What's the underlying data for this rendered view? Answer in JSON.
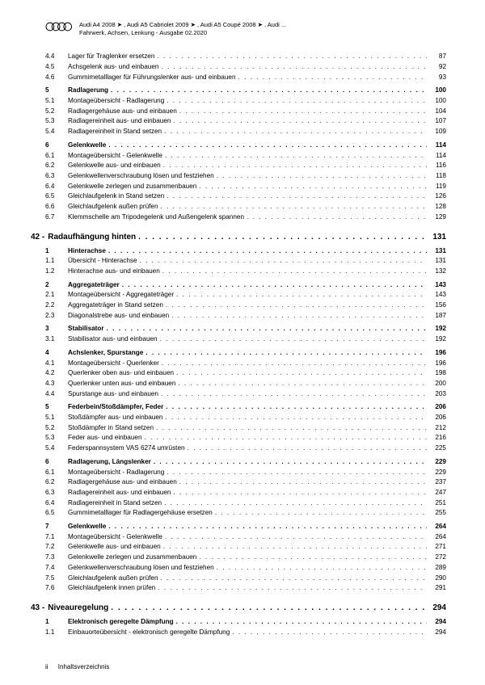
{
  "header": {
    "line1": "Audi A4 2008 ➤ , Audi A5 Cabriolet 2009 ➤ , Audi A5 Coupé 2008 ➤ , Audi ...",
    "line2": "Fahrwerk, Achsen, Lenkung - Ausgabe 02.2020"
  },
  "toc": [
    {
      "type": "row",
      "num": "4.4",
      "label": "Lager für Traglenker ersetzen",
      "page": "87"
    },
    {
      "type": "row",
      "num": "4.5",
      "label": "Achsgelenk aus- und einbauen",
      "page": "92"
    },
    {
      "type": "row",
      "num": "4.6",
      "label": "Gummimetalllager für Führungslenker aus- und einbauen",
      "page": "93"
    },
    {
      "type": "spacer"
    },
    {
      "type": "row",
      "bold": true,
      "num": "5",
      "label": "Radlagerung",
      "page": "100"
    },
    {
      "type": "row",
      "num": "5.1",
      "label": "Montageübersicht - Radlagerung",
      "page": "100"
    },
    {
      "type": "row",
      "num": "5.2",
      "label": "Radlagergehäuse aus- und einbauen",
      "page": "104"
    },
    {
      "type": "row",
      "num": "5.3",
      "label": "Radlagereinheit aus- und einbauen",
      "page": "107"
    },
    {
      "type": "row",
      "num": "5.4",
      "label": "Radlagereinheit in Stand setzen",
      "page": "109"
    },
    {
      "type": "spacer"
    },
    {
      "type": "row",
      "bold": true,
      "num": "6",
      "label": "Gelenkwelle",
      "page": "114"
    },
    {
      "type": "row",
      "num": "6.1",
      "label": "Montageübersicht - Gelenkwelle",
      "page": "114"
    },
    {
      "type": "row",
      "num": "6.2",
      "label": "Gelenkwelle aus- und einbauen",
      "page": "116"
    },
    {
      "type": "row",
      "num": "6.3",
      "label": "Gelenkwellenverschraubung lösen und festziehen",
      "page": "118"
    },
    {
      "type": "row",
      "num": "6.4",
      "label": "Gelenkwelle zerlegen und zusammenbauen",
      "page": "119"
    },
    {
      "type": "row",
      "num": "6.5",
      "label": "Gleichlaufgelenk in Stand setzen",
      "page": "126"
    },
    {
      "type": "row",
      "num": "6.6",
      "label": "Gleichlaufgelenk außen prüfen",
      "page": "128"
    },
    {
      "type": "row",
      "num": "6.7",
      "label": "Klemmschelle am Tripodegelenk und Außengelenk spannen",
      "page": "129"
    },
    {
      "type": "chapter",
      "num": "42 -",
      "label": "Radaufhängung hinten",
      "page": "131"
    },
    {
      "type": "row",
      "bold": true,
      "num": "1",
      "label": "Hinterachse",
      "page": "131"
    },
    {
      "type": "row",
      "num": "1.1",
      "label": "Übersicht - Hinterachse",
      "page": "131"
    },
    {
      "type": "row",
      "num": "1.2",
      "label": "Hinterachse aus- und einbauen",
      "page": "132"
    },
    {
      "type": "spacer"
    },
    {
      "type": "row",
      "bold": true,
      "num": "2",
      "label": "Aggregateträger",
      "page": "143"
    },
    {
      "type": "row",
      "num": "2.1",
      "label": "Montageübersicht - Aggregateträger",
      "page": "143"
    },
    {
      "type": "row",
      "num": "2.2",
      "label": "Aggregateträger in Stand setzen",
      "page": "156"
    },
    {
      "type": "row",
      "num": "2.3",
      "label": "Diagonalstrebe aus- und einbauen",
      "page": "187"
    },
    {
      "type": "spacer"
    },
    {
      "type": "row",
      "bold": true,
      "num": "3",
      "label": "Stabilisator",
      "page": "192"
    },
    {
      "type": "row",
      "num": "3.1",
      "label": "Stabilisator aus- und einbauen",
      "page": "192"
    },
    {
      "type": "spacer"
    },
    {
      "type": "row",
      "bold": true,
      "num": "4",
      "label": "Achslenker, Spurstange",
      "page": "196"
    },
    {
      "type": "row",
      "num": "4.1",
      "label": "Montageübersicht - Querlenker",
      "page": "196"
    },
    {
      "type": "row",
      "num": "4.2",
      "label": "Querlenker oben aus- und einbauen",
      "page": "198"
    },
    {
      "type": "row",
      "num": "4.3",
      "label": "Querlenker unten aus- und einbauen",
      "page": "200"
    },
    {
      "type": "row",
      "num": "4.4",
      "label": "Spurstange aus- und einbauen",
      "page": "203"
    },
    {
      "type": "spacer"
    },
    {
      "type": "row",
      "bold": true,
      "num": "5",
      "label": "Federbein/Stoßdämpfer, Feder",
      "page": "206"
    },
    {
      "type": "row",
      "num": "5.1",
      "label": "Stoßdämpfer aus- und einbauen",
      "page": "206"
    },
    {
      "type": "row",
      "num": "5.2",
      "label": "Stoßdämpfer in Stand setzen",
      "page": "212"
    },
    {
      "type": "row",
      "num": "5.3",
      "label": "Feder aus- und einbauen",
      "page": "216"
    },
    {
      "type": "row",
      "num": "5.4",
      "label": "Federspannsystem VAS 6274 umrüsten",
      "page": "225"
    },
    {
      "type": "spacer"
    },
    {
      "type": "row",
      "bold": true,
      "num": "6",
      "label": "Radlagerung, Längslenker",
      "page": "229"
    },
    {
      "type": "row",
      "num": "6.1",
      "label": "Montageübersicht - Radlagerung",
      "page": "229"
    },
    {
      "type": "row",
      "num": "6.2",
      "label": "Radlagergehäuse aus- und einbauen",
      "page": "237"
    },
    {
      "type": "row",
      "num": "6.3",
      "label": "Radlagereinheit aus- und einbauen",
      "page": "247"
    },
    {
      "type": "row",
      "num": "6.4",
      "label": "Radlagereinheit in Stand setzen",
      "page": "251"
    },
    {
      "type": "row",
      "num": "6.5",
      "label": "Gummimetalllager für Radlagergehäuse ersetzen",
      "page": "255"
    },
    {
      "type": "spacer"
    },
    {
      "type": "row",
      "bold": true,
      "num": "7",
      "label": "Gelenkwelle",
      "page": "264"
    },
    {
      "type": "row",
      "num": "7.1",
      "label": "Montageübersicht - Gelenkwelle",
      "page": "264"
    },
    {
      "type": "row",
      "num": "7.2",
      "label": "Gelenkwelle aus- und einbauen",
      "page": "271"
    },
    {
      "type": "row",
      "num": "7.3",
      "label": "Gelenkwelle zerlegen und zusammenbauen",
      "page": "272"
    },
    {
      "type": "row",
      "num": "7.4",
      "label": "Gelenkwellenverschraubung lösen und festziehen",
      "page": "289"
    },
    {
      "type": "row",
      "num": "7.5",
      "label": "Gleichlaufgelenk außen prüfen",
      "page": "290"
    },
    {
      "type": "row",
      "num": "7.6",
      "label": "Gleichlaufgelenk innen prüfen",
      "page": "291"
    },
    {
      "type": "chapter",
      "num": "43 -",
      "label": "Niveauregelung",
      "page": "294"
    },
    {
      "type": "row",
      "bold": true,
      "num": "1",
      "label": "Elektronisch geregelte Dämpfung",
      "page": "294"
    },
    {
      "type": "row",
      "num": "1.1",
      "label": "Einbauorteübersicht - elektronisch geregelte Dämpfung",
      "page": "294"
    }
  ],
  "footer": {
    "page": "ii",
    "label": "Inhaltsverzeichnis"
  }
}
